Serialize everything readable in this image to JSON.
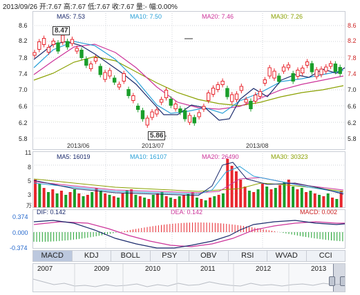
{
  "header": {
    "quote": "2013/09/26 开:7.67  高:7.67  低:7.67  收:7.67  量:-  幅:0.00%"
  },
  "main_chart": {
    "ma_labels": [
      {
        "text": "MA5: 7.53",
        "color": "#1a2a6c"
      },
      {
        "text": "MA10: 7.50",
        "color": "#2aa0d8"
      },
      {
        "text": "MA20: 7.46",
        "color": "#cc3399"
      },
      {
        "text": "MA30: 7.26",
        "color": "#8aa000"
      }
    ],
    "y_ticks": [
      "8.6",
      "8.2",
      "7.8",
      "7.4",
      "7.0",
      "6.6",
      "6.2",
      "5.8"
    ],
    "x_ticks": [
      "2013/06",
      "2013/07",
      "2013/08"
    ],
    "high_marker": "8.47",
    "low_marker": "5.86",
    "up_color": "#e8262d",
    "down_color": "#1a9e2a"
  },
  "volume_chart": {
    "ma_labels": [
      {
        "text": "MA5: 16019",
        "color": "#1a2a6c"
      },
      {
        "text": "MA10: 16107",
        "color": "#2aa0d8"
      },
      {
        "text": "MA20: 26490",
        "color": "#cc3399"
      },
      {
        "text": "MA30: 30323",
        "color": "#8aa000"
      }
    ],
    "y_ticks": [
      "11",
      "8",
      "5",
      "3"
    ],
    "unit": "万"
  },
  "macd_chart": {
    "dif_label": "DIF: 0.142",
    "dea_label": "DEA: 0.142",
    "macd_label": "MACD: 0.002",
    "y_ticks": [
      "0.374",
      "0.000",
      "-0.374"
    ]
  },
  "tabs": [
    "MACD",
    "KDJ",
    "BOLL",
    "PSY",
    "OBV",
    "RSI",
    "WVAD",
    "CCI"
  ],
  "active_tab": "MACD",
  "navigator": {
    "years": [
      "2007",
      "2009",
      "2010",
      "2011",
      "2012",
      "2013"
    ]
  }
}
